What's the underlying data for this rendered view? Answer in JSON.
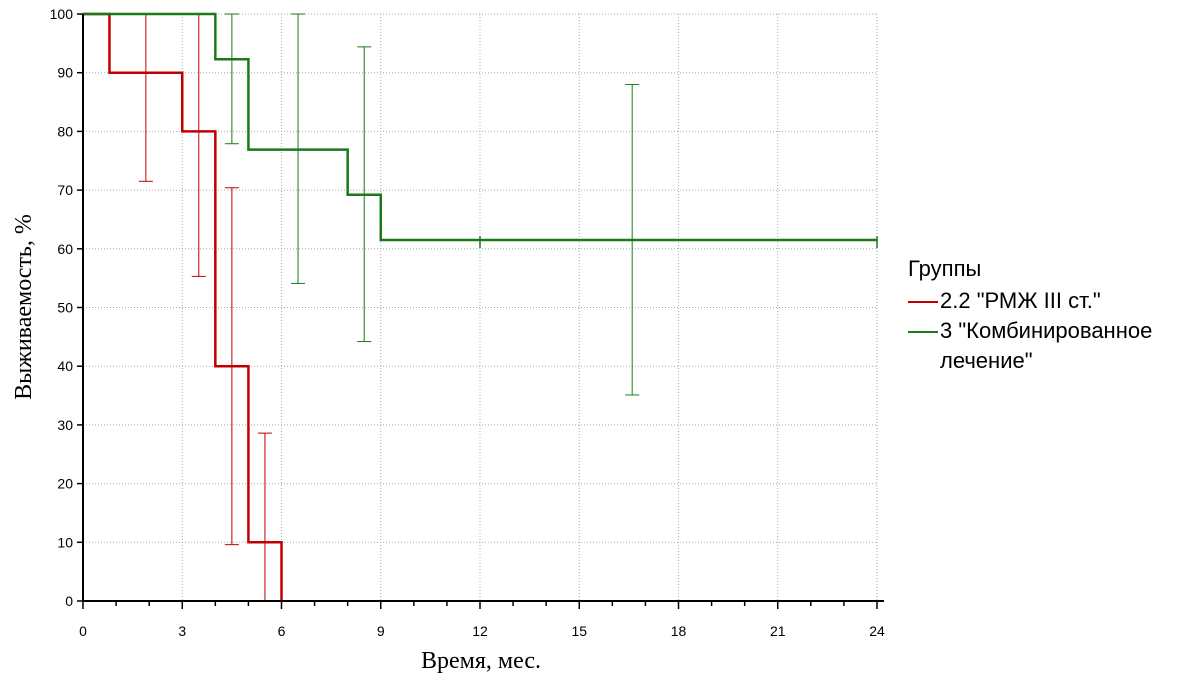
{
  "chart_data": {
    "type": "line",
    "subtype": "kaplan-meier step survival curves with error bars",
    "xlabel": "Время, мес.",
    "ylabel": "Выживаемость, %",
    "xlim": [
      0,
      24
    ],
    "ylim": [
      0,
      100
    ],
    "xticks": [
      "0",
      "3",
      "6",
      "9",
      "12",
      "15",
      "18",
      "21",
      "24"
    ],
    "yticks": [
      "0",
      "10",
      "20",
      "30",
      "40",
      "50",
      "60",
      "70",
      "80",
      "90",
      "100"
    ],
    "grid": true,
    "legend_title": "Группы",
    "legend_position": "right",
    "series": [
      {
        "name": "2.2 \"РМЖ III ст.\"",
        "color": "#c00000",
        "steps": [
          [
            0,
            100
          ],
          [
            0.8,
            90
          ],
          [
            3,
            80
          ],
          [
            4,
            40
          ],
          [
            5,
            10
          ],
          [
            6,
            0
          ]
        ],
        "end_x": 6,
        "error_bars": [
          {
            "x": 1.9,
            "low": 71.5,
            "high": 100
          },
          {
            "x": 3.5,
            "low": 55.3,
            "high": 100
          },
          {
            "x": 4.5,
            "low": 9.6,
            "high": 70.4
          },
          {
            "x": 5.5,
            "low": 0,
            "high": 28.6
          }
        ]
      },
      {
        "name": "3 \"Комбинированное лечение\"",
        "color": "#1a7a1a",
        "steps": [
          [
            0,
            100
          ],
          [
            4,
            92.3
          ],
          [
            5,
            76.9
          ],
          [
            8,
            69.2
          ],
          [
            9,
            61.5
          ]
        ],
        "end_x": 24,
        "censored_x": [
          12,
          24
        ],
        "error_bars": [
          {
            "x": 4.5,
            "low": 77.9,
            "high": 100
          },
          {
            "x": 6.5,
            "low": 54.1,
            "high": 100
          },
          {
            "x": 8.5,
            "low": 44.2,
            "high": 94.4
          },
          {
            "x": 16.6,
            "low": 35.1,
            "high": 88
          }
        ]
      }
    ]
  }
}
